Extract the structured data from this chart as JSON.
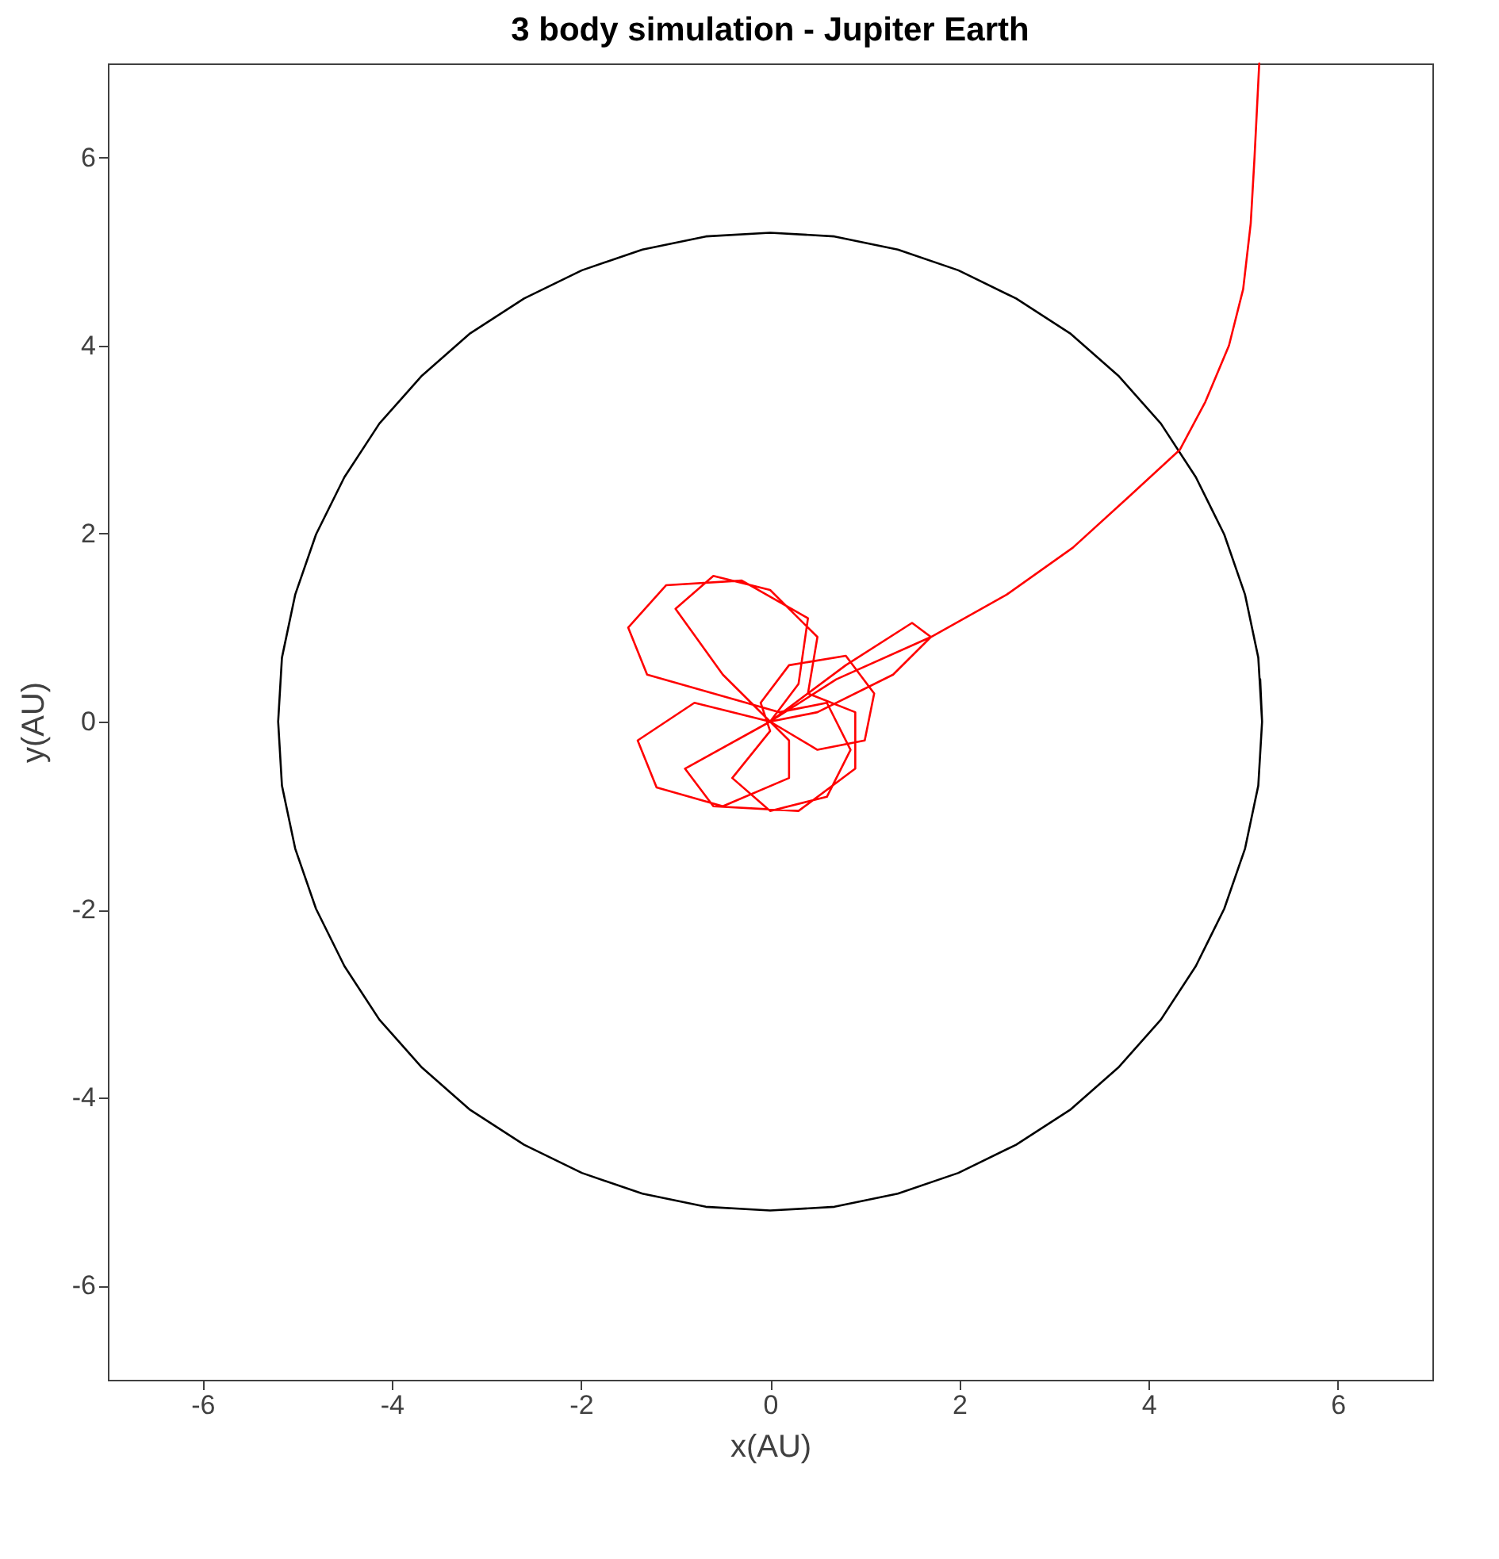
{
  "chart_data": {
    "type": "line",
    "title": "3 body simulation - Jupiter Earth",
    "xlabel": "x(AU)",
    "ylabel": "y(AU)",
    "xlim": [
      -7,
      7
    ],
    "xticks": [
      -6,
      -4,
      -2,
      0,
      2,
      4,
      6
    ],
    "ylim": [
      -7,
      7
    ],
    "yticks": [
      -6,
      -4,
      -2,
      0,
      2,
      4,
      6
    ],
    "grid": false,
    "line_style": "solid",
    "series": [
      {
        "color": "#000000",
        "x": [
          5.2,
          5.16,
          5.02,
          4.8,
          4.5,
          4.13,
          3.68,
          3.17,
          2.6,
          1.99,
          1.35,
          0.68,
          0,
          -0.68,
          -1.35,
          -1.99,
          -2.6,
          -3.17,
          -3.68,
          -4.13,
          -4.5,
          -4.8,
          -5.02,
          -5.16,
          -5.2,
          -5.16,
          -5.02,
          -4.8,
          -4.5,
          -4.13,
          -3.68,
          -3.17,
          -2.6,
          -1.99,
          -1.35,
          -0.68,
          0,
          0.68,
          1.35,
          1.99,
          2.6,
          3.17,
          3.68,
          4.13,
          4.5,
          4.8,
          5.02,
          5.16,
          5.2,
          5.18
        ],
        "values": [
          0,
          0.68,
          1.35,
          1.99,
          2.6,
          3.17,
          3.68,
          4.13,
          4.5,
          4.8,
          5.02,
          5.16,
          5.2,
          5.16,
          5.02,
          4.8,
          4.5,
          4.13,
          3.68,
          3.17,
          2.6,
          1.99,
          1.35,
          0.68,
          0,
          -0.68,
          -1.35,
          -1.99,
          -2.6,
          -3.17,
          -3.68,
          -4.13,
          -4.5,
          -4.8,
          -5.02,
          -5.16,
          -5.2,
          -5.16,
          -5.02,
          -4.8,
          -4.5,
          -4.13,
          -3.68,
          -3.17,
          -2.6,
          -1.99,
          -1.35,
          -0.68,
          0,
          0.45
        ]
      },
      {
        "color": "#ff0000",
        "x": [
          0,
          -0.5,
          -1.0,
          -0.6,
          0,
          0.5,
          0.4,
          0,
          -0.8,
          -1.4,
          -1.2,
          -0.5,
          0.2,
          0.2,
          0,
          0.5,
          1.0,
          1.1,
          0.8,
          0.2,
          -0.1,
          0,
          -0.4,
          0,
          0.6,
          0.85,
          0.6,
          0.1,
          -1.3,
          -1.5,
          -1.1,
          -0.3,
          0.4,
          0.3,
          0,
          0.8,
          1.5,
          1.7,
          1.3,
          0.5,
          0,
          -0.9,
          -0.6,
          0.3,
          0.9,
          0.9,
          0.4,
          0,
          0.7,
          1.7,
          2.5,
          3.2,
          3.8,
          4.33,
          4.6,
          4.85,
          5.0,
          5.08,
          5.12,
          5.17
        ],
        "values": [
          0,
          0.5,
          1.2,
          1.55,
          1.4,
          0.9,
          0.3,
          0,
          0.2,
          -0.2,
          -0.7,
          -0.9,
          -0.6,
          -0.2,
          0,
          -0.3,
          -0.2,
          0.3,
          0.7,
          0.6,
          0.2,
          -0.1,
          -0.6,
          -0.95,
          -0.8,
          -0.3,
          0.2,
          0.1,
          0.5,
          1.0,
          1.45,
          1.5,
          1.1,
          0.4,
          0,
          0.6,
          1.05,
          0.9,
          0.5,
          0.1,
          0,
          -0.5,
          -0.9,
          -0.95,
          -0.5,
          0.1,
          0.3,
          0,
          0.45,
          0.9,
          1.35,
          1.85,
          2.4,
          2.89,
          3.4,
          4.0,
          4.6,
          5.3,
          6.0,
          7.0
        ]
      }
    ]
  }
}
